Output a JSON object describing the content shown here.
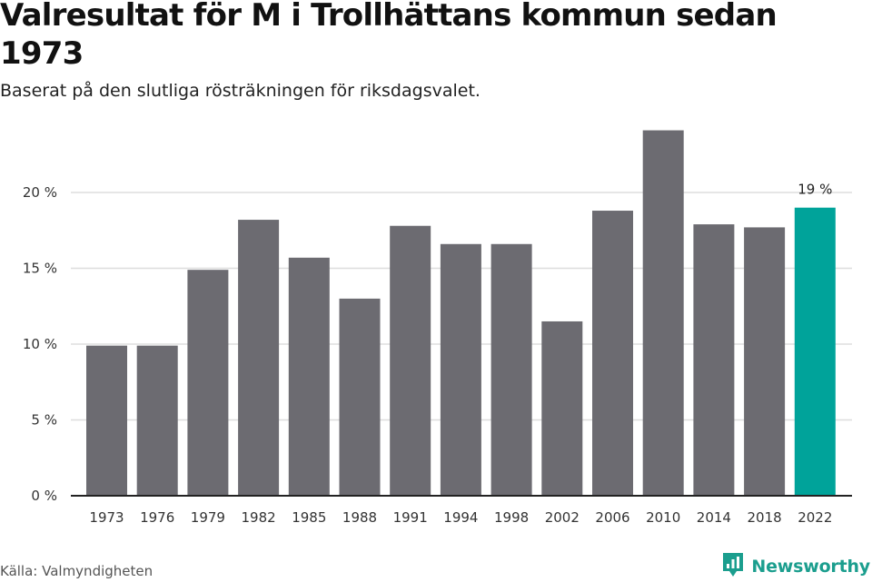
{
  "title": "Valresultat för M i Trollhättans kommun sedan 1973",
  "subtitle": "Baserat på den slutliga rösträkningen för riksdagsvalet.",
  "source": "Källa: Valmyndigheten",
  "brand": {
    "name": "Newsworthy",
    "icon": "newsworthy-logo-icon",
    "color": "#1b9e8e"
  },
  "chart_data": {
    "type": "bar",
    "categories": [
      "1973",
      "1976",
      "1979",
      "1982",
      "1985",
      "1988",
      "1991",
      "1994",
      "1998",
      "2002",
      "2006",
      "2010",
      "2014",
      "2018",
      "2022"
    ],
    "values": [
      9.9,
      9.9,
      14.9,
      18.2,
      15.7,
      13.0,
      17.8,
      16.6,
      16.6,
      11.5,
      18.8,
      24.1,
      17.9,
      17.7,
      19.0
    ],
    "ylim": [
      0,
      25
    ],
    "yticks": [
      {
        "value": 0,
        "label": "0 %"
      },
      {
        "value": 5,
        "label": "5 %"
      },
      {
        "value": 10,
        "label": "10 %"
      },
      {
        "value": 15,
        "label": "15 %"
      },
      {
        "value": 20,
        "label": "20 %"
      }
    ],
    "annotations": [
      {
        "index": 14,
        "label": "19 %"
      }
    ],
    "grid": true,
    "colors": {
      "bar": "#6c6b71",
      "highlight": "#00a39a",
      "grid": "#dddddd",
      "axis": "#222222"
    }
  }
}
